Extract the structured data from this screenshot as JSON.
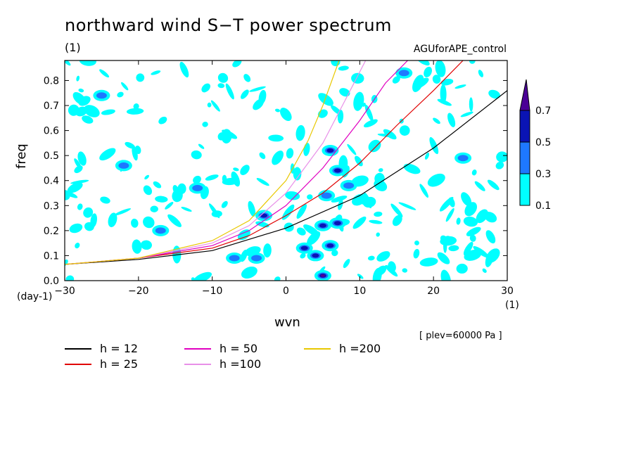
{
  "figure": {
    "title": "northward wind S−T power spectrum",
    "subtitle": "(1)",
    "run_name": "AGUforAPE_control",
    "level_note": "[ plev=60000 Pa ]"
  },
  "chart_data": {
    "type": "heatmap",
    "xlabel": "wvn",
    "ylabel": "freq",
    "x_unit": "(1)",
    "y_unit": "(day-1)",
    "xlim": [
      -30,
      30
    ],
    "ylim": [
      0,
      0.88
    ],
    "x_ticks": [
      -30,
      -20,
      -10,
      0,
      10,
      20,
      30
    ],
    "y_ticks": [
      0.0,
      0.1,
      0.2,
      0.3,
      0.4,
      0.5,
      0.6,
      0.7,
      0.8
    ],
    "colorbar": {
      "levels": [
        0.1,
        0.3,
        0.5,
        0.7
      ],
      "colors": [
        "#00ffff",
        "#1e78ff",
        "#0a14b4",
        "#4b0096"
      ]
    },
    "shaded_regions": [
      {
        "x": 5.0,
        "y": 0.02,
        "level": 3
      },
      {
        "x": 4.0,
        "y": 0.1,
        "level": 2
      },
      {
        "x": 6.0,
        "y": 0.14,
        "level": 2
      },
      {
        "x": 5.0,
        "y": 0.22,
        "level": 2
      },
      {
        "x": 7.0,
        "y": 0.23,
        "level": 2
      },
      {
        "x": 2.5,
        "y": 0.13,
        "level": 2
      },
      {
        "x": -3.0,
        "y": 0.26,
        "level": 2
      },
      {
        "x": 7.0,
        "y": 0.44,
        "level": 2
      },
      {
        "x": 8.5,
        "y": 0.38,
        "level": 1
      },
      {
        "x": -12.0,
        "y": 0.37,
        "level": 1
      },
      {
        "x": -4.0,
        "y": 0.09,
        "level": 1
      },
      {
        "x": -17.0,
        "y": 0.2,
        "level": 1
      },
      {
        "x": 16.0,
        "y": 0.83,
        "level": 1
      },
      {
        "x": -25.0,
        "y": 0.74,
        "level": 1
      },
      {
        "x": -7.0,
        "y": 0.09,
        "level": 1
      },
      {
        "x": 6.0,
        "y": 0.52,
        "level": 2
      },
      {
        "x": -22.0,
        "y": 0.46,
        "level": 1
      },
      {
        "x": 24.0,
        "y": 0.49,
        "level": 1
      },
      {
        "x": 5.5,
        "y": 0.34,
        "level": 1
      }
    ],
    "series": [
      {
        "name": "h = 12",
        "color": "#000000",
        "x": [
          -30,
          -20,
          -10,
          0,
          10,
          20,
          30
        ],
        "y": [
          0.065,
          0.085,
          0.12,
          0.21,
          0.34,
          0.53,
          0.76
        ]
      },
      {
        "name": "h = 25",
        "color": "#e00000",
        "x": [
          -30,
          -20,
          -10,
          -5,
          0,
          5,
          10,
          15,
          20,
          24
        ],
        "y": [
          0.065,
          0.09,
          0.13,
          0.18,
          0.26,
          0.35,
          0.47,
          0.62,
          0.76,
          0.88
        ]
      },
      {
        "name": "h = 50",
        "color": "#e000c0",
        "x": [
          -30,
          -20,
          -10,
          -5,
          0,
          5,
          10,
          13.5,
          16.5
        ],
        "y": [
          0.065,
          0.09,
          0.14,
          0.2,
          0.3,
          0.45,
          0.64,
          0.79,
          0.88
        ]
      },
      {
        "name": "h =100",
        "color": "#e890e8",
        "x": [
          -30,
          -20,
          -10,
          -5,
          0,
          5,
          8,
          10.8
        ],
        "y": [
          0.065,
          0.09,
          0.15,
          0.22,
          0.35,
          0.55,
          0.72,
          0.88
        ]
      },
      {
        "name": "h =200",
        "color": "#e8c800",
        "x": [
          -30,
          -20,
          -10,
          -5,
          0,
          3,
          5,
          7.2
        ],
        "y": [
          0.065,
          0.09,
          0.16,
          0.24,
          0.4,
          0.56,
          0.7,
          0.88
        ]
      }
    ]
  }
}
